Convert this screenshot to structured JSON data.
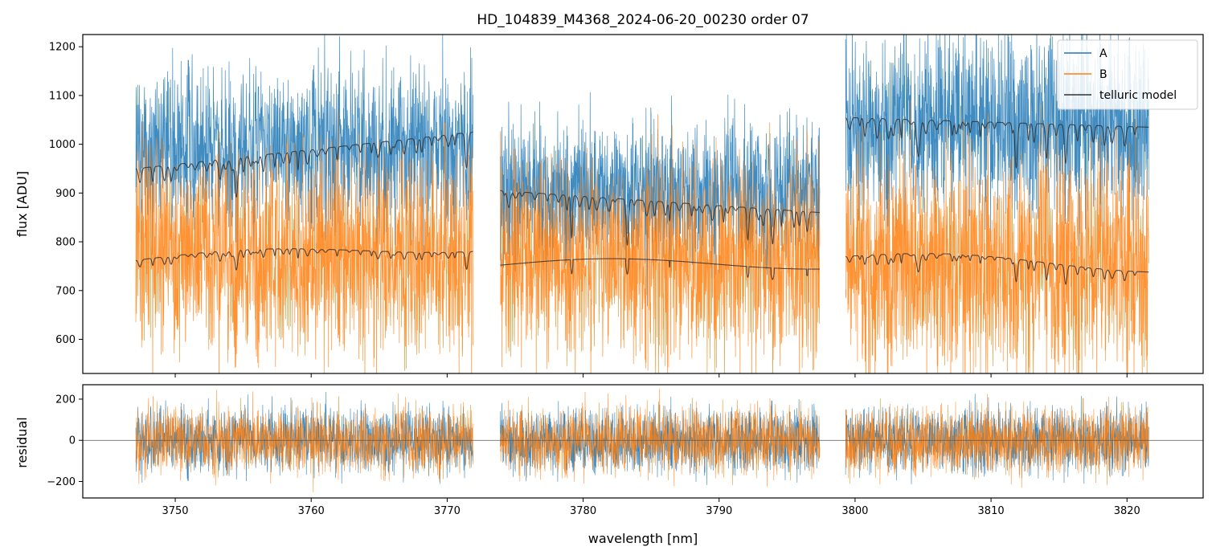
{
  "chart_data": [
    {
      "type": "line",
      "panel": "flux",
      "title": "HD_104839_M4368_2024-06-20_00230  order 07",
      "xlabel": "",
      "ylabel": "flux [ADU]",
      "xlim": [
        3743.2,
        3825.6
      ],
      "ylim": [
        530,
        1225
      ],
      "xticks": [
        3750,
        3760,
        3770,
        3780,
        3790,
        3800,
        3810,
        3820
      ],
      "yticks": [
        600,
        700,
        800,
        900,
        1000,
        1100,
        1200
      ],
      "segments": [
        [
          3747.1,
          3771.9
        ],
        [
          3773.9,
          3797.4
        ],
        [
          3799.3,
          3821.6
        ]
      ],
      "series": [
        {
          "name": "A",
          "color": "#1f77b4",
          "style": "noisy spectrum",
          "approx_mean": [
            1000,
            910,
            1050
          ],
          "approx_noise": [
            85,
            75,
            95
          ]
        },
        {
          "name": "B",
          "color": "#ff7f0e",
          "style": "noisy spectrum",
          "approx_mean": [
            780,
            765,
            760
          ],
          "approx_noise": [
            110,
            105,
            120
          ]
        },
        {
          "name": "telluric model",
          "color": "#333333",
          "style": "model lines with absorption dips",
          "A_model_continuum": [
            [
              950,
              1025
            ],
            [
              905,
              860
            ],
            [
              1055,
              1035
            ]
          ],
          "B_model_continuum": [
            [
              762,
              792
            ],
            [
              752,
              756
            ],
            [
              770,
              750
            ]
          ]
        }
      ],
      "legend": {
        "position": "top-right",
        "entries": [
          "A",
          "B",
          "telluric model"
        ]
      }
    },
    {
      "type": "line",
      "panel": "residual",
      "xlabel": "wavelength [nm]",
      "ylabel": "residual",
      "xlim": [
        3743.2,
        3825.6
      ],
      "ylim": [
        -280,
        270
      ],
      "xticks": [
        3750,
        3760,
        3770,
        3780,
        3790,
        3800,
        3810,
        3820
      ],
      "yticks": [
        -200,
        0,
        200
      ],
      "zero_line": true,
      "series": [
        {
          "name": "A",
          "color": "#1f77b4",
          "approx_noise": 80
        },
        {
          "name": "B",
          "color": "#ff7f0e",
          "approx_noise": 85
        }
      ]
    }
  ]
}
